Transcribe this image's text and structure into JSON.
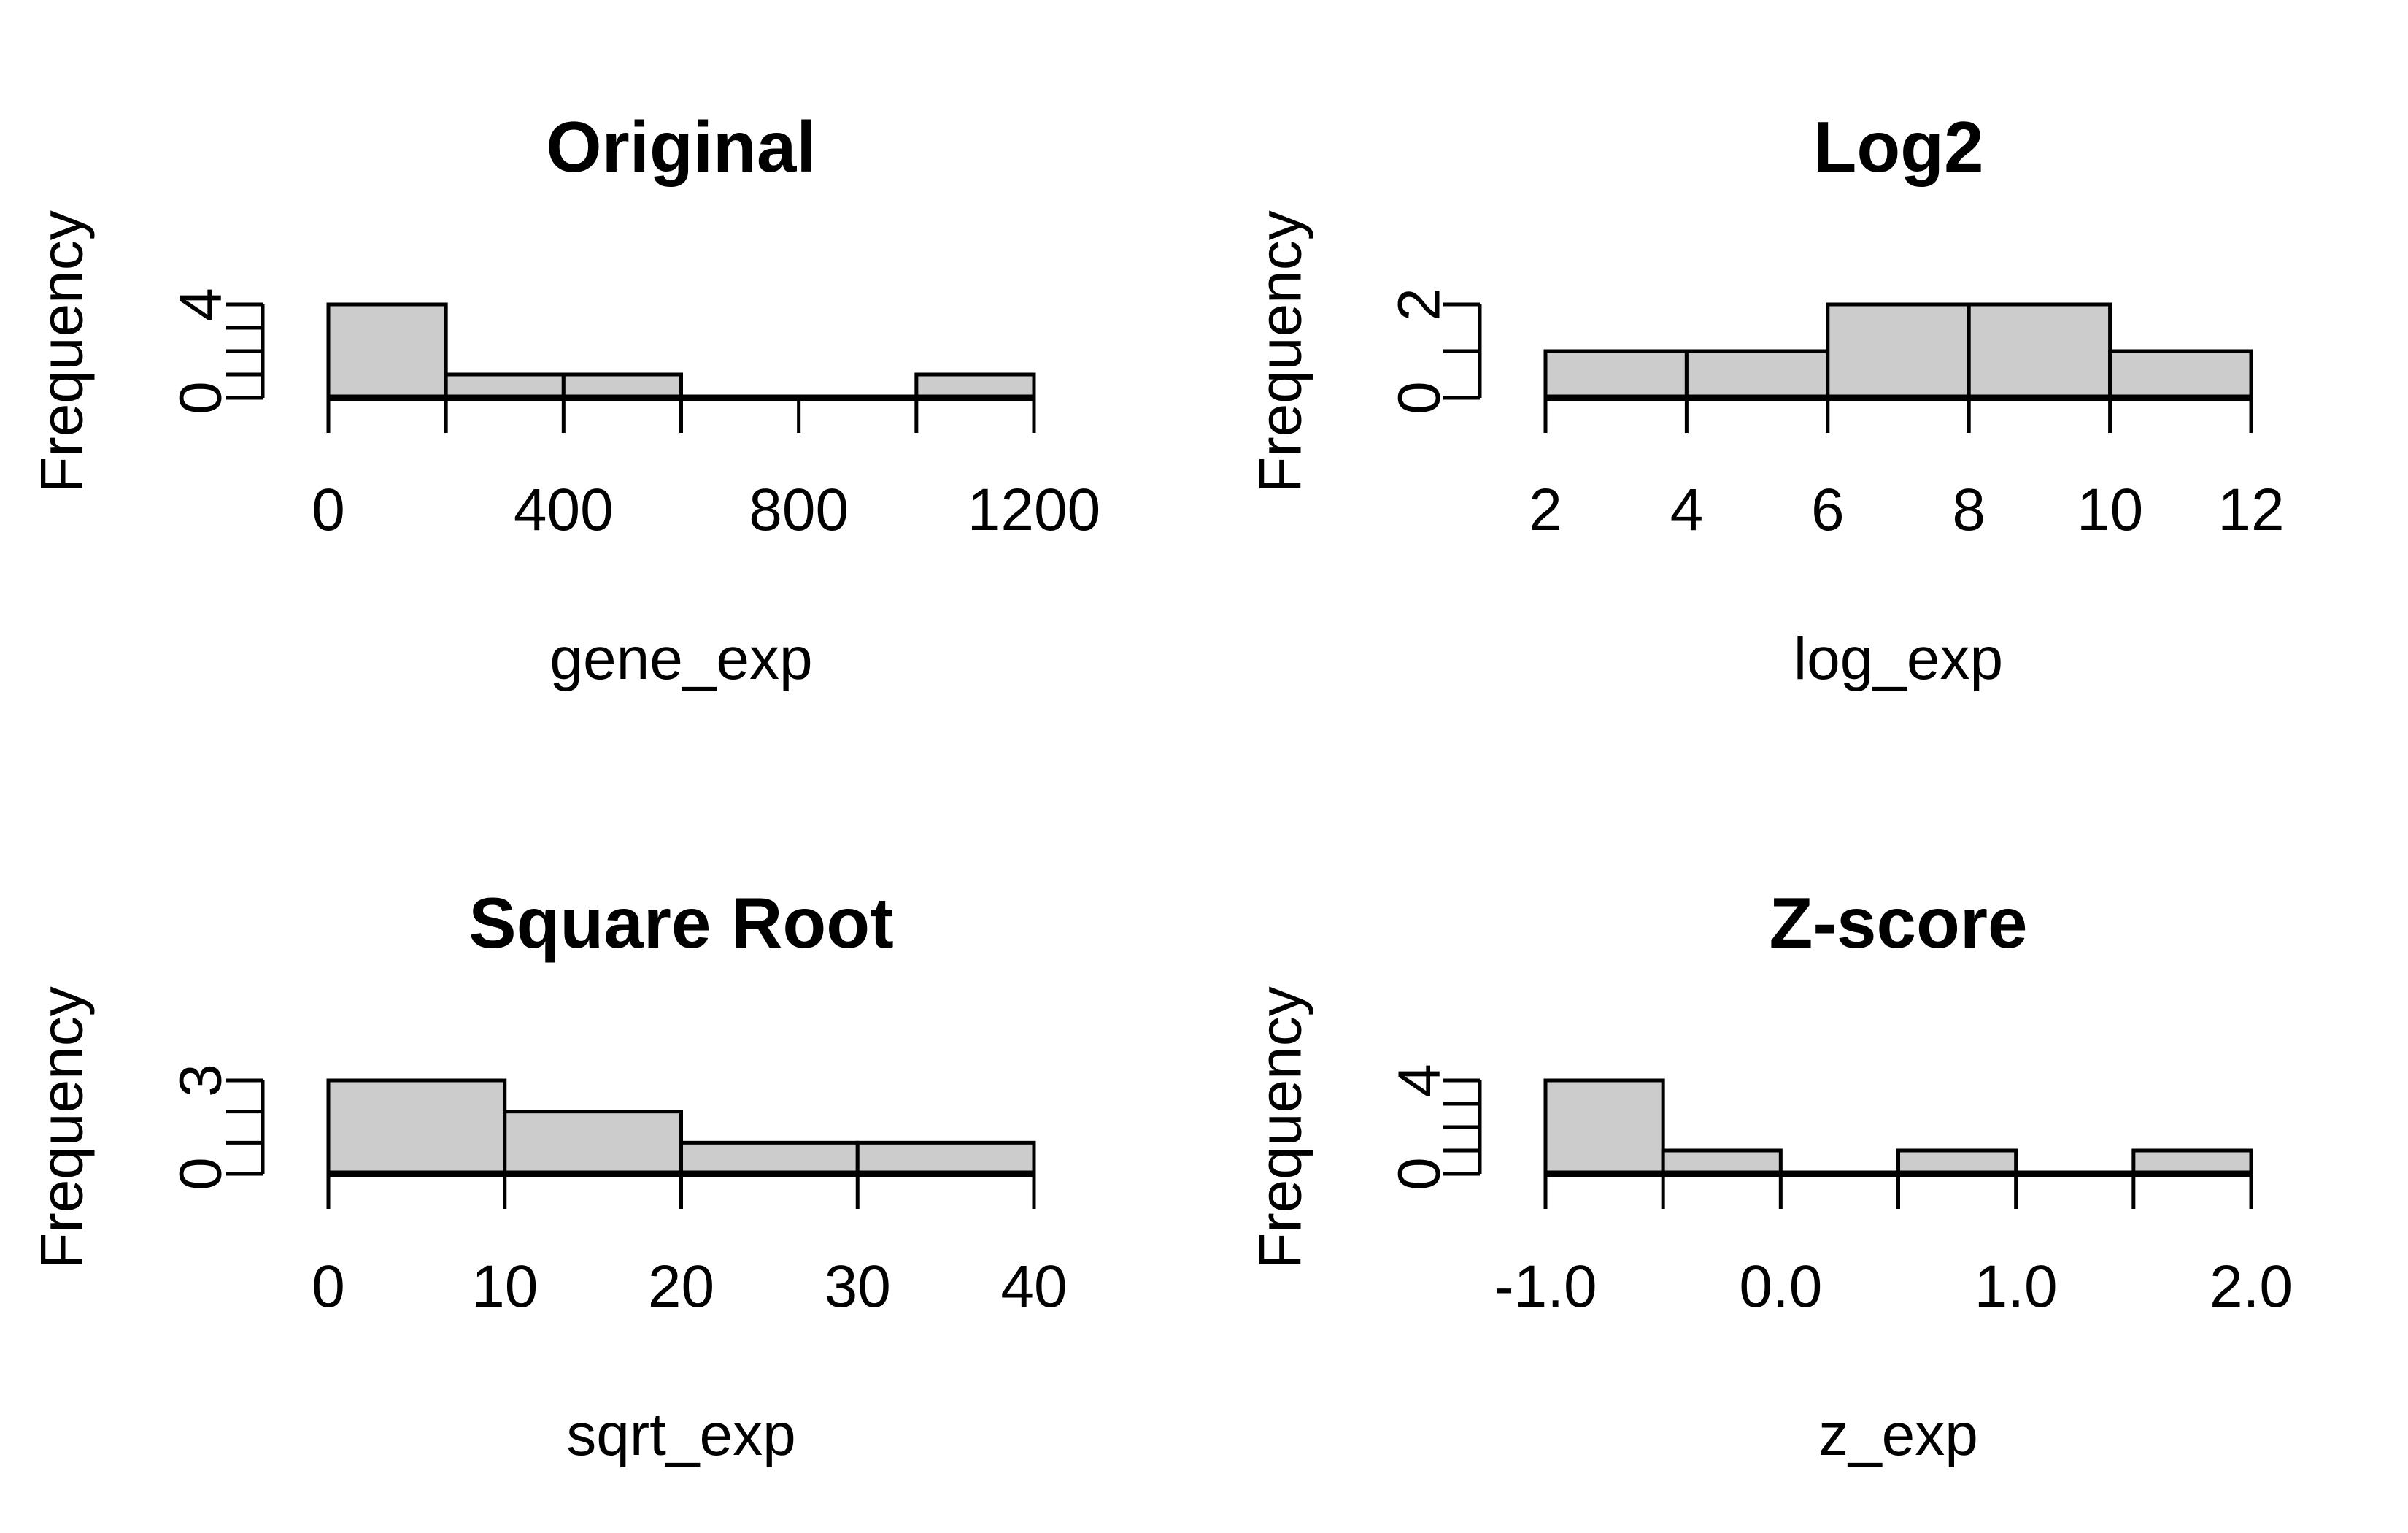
{
  "chart_data": [
    {
      "type": "bar",
      "title": "Original",
      "xlabel": "gene_exp",
      "ylabel": "Frequency",
      "bins": [
        [
          0,
          200
        ],
        [
          200,
          400
        ],
        [
          400,
          600
        ],
        [
          600,
          800
        ],
        [
          800,
          1000
        ],
        [
          1000,
          1200
        ]
      ],
      "values": [
        4,
        1,
        1,
        0,
        0,
        1
      ],
      "xlim": [
        0,
        1200
      ],
      "ylim": [
        0,
        4
      ],
      "xticks": [
        "0",
        "400",
        "800",
        "1200"
      ],
      "xtick_values": [
        0,
        400,
        800,
        1200
      ],
      "yticks": [
        "0",
        "4"
      ],
      "ytick_values": [
        0,
        4
      ],
      "bar_color": "#cccccc"
    },
    {
      "type": "bar",
      "title": "Log2",
      "xlabel": "log_exp",
      "ylabel": "Frequency",
      "bins": [
        [
          2,
          4
        ],
        [
          4,
          6
        ],
        [
          6,
          8
        ],
        [
          8,
          10
        ],
        [
          10,
          12
        ]
      ],
      "values": [
        1,
        1,
        2,
        2,
        1
      ],
      "xlim": [
        2,
        12
      ],
      "ylim": [
        0,
        2
      ],
      "xticks": [
        "2",
        "4",
        "6",
        "8",
        "10",
        "12"
      ],
      "xtick_values": [
        2,
        4,
        6,
        8,
        10,
        12
      ],
      "yticks": [
        "0",
        "2"
      ],
      "ytick_values": [
        0,
        2
      ],
      "bar_color": "#cccccc"
    },
    {
      "type": "bar",
      "title": "Square Root",
      "xlabel": "sqrt_exp",
      "ylabel": "Frequency",
      "bins": [
        [
          0,
          10
        ],
        [
          10,
          20
        ],
        [
          20,
          30
        ],
        [
          30,
          40
        ]
      ],
      "values": [
        3,
        2,
        1,
        1
      ],
      "xlim": [
        0,
        40
      ],
      "ylim": [
        0,
        3
      ],
      "xticks": [
        "0",
        "10",
        "20",
        "30",
        "40"
      ],
      "xtick_values": [
        0,
        10,
        20,
        30,
        40
      ],
      "yticks": [
        "0",
        "3"
      ],
      "ytick_values": [
        0,
        3
      ],
      "bar_color": "#cccccc"
    },
    {
      "type": "bar",
      "title": "Z-score",
      "xlabel": "z_exp",
      "ylabel": "Frequency",
      "bins": [
        [
          -1.0,
          -0.5
        ],
        [
          -0.5,
          0.0
        ],
        [
          0.0,
          0.5
        ],
        [
          0.5,
          1.0
        ],
        [
          1.0,
          1.5
        ],
        [
          1.5,
          2.0
        ]
      ],
      "values": [
        4,
        1,
        0,
        1,
        0,
        1
      ],
      "xlim": [
        -1.0,
        2.0
      ],
      "ylim": [
        0,
        4
      ],
      "xticks": [
        "-1.0",
        "0.0",
        "1.0",
        "2.0"
      ],
      "xtick_values": [
        -1.0,
        0.0,
        1.0,
        2.0
      ],
      "yticks": [
        "0",
        "4"
      ],
      "ytick_values": [
        0,
        4
      ],
      "bar_color": "#cccccc"
    }
  ]
}
